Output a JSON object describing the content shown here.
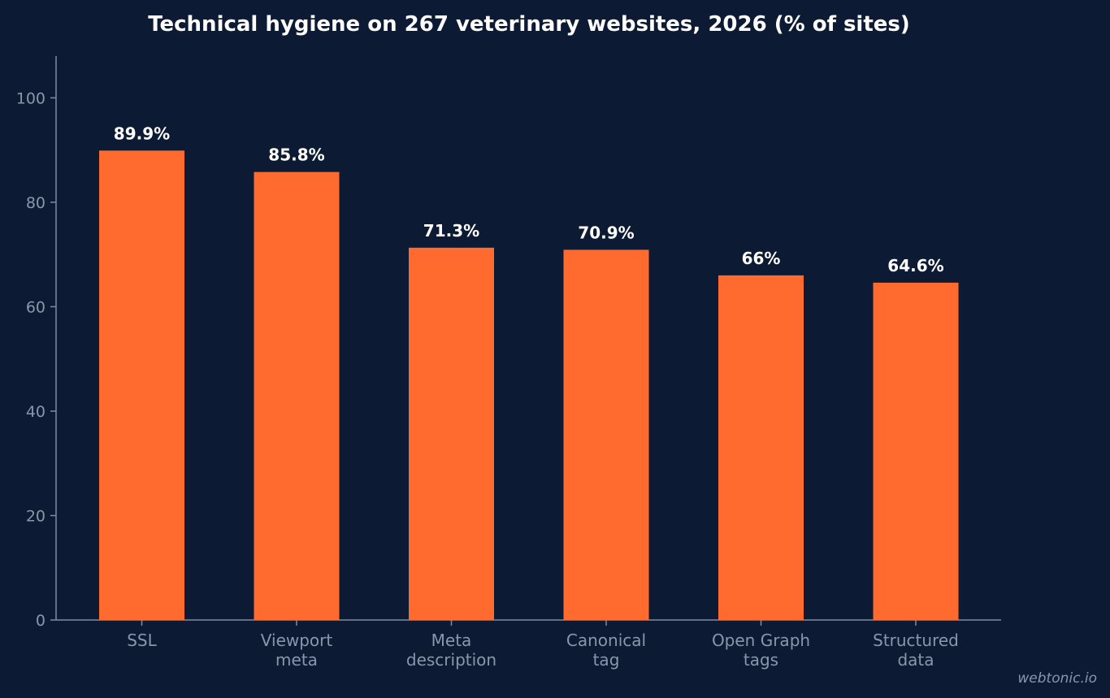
{
  "chart_data": {
    "type": "bar",
    "title": "Technical hygiene on 267 veterinary websites, 2026 (% of sites)",
    "xlabel": "",
    "ylabel": "",
    "ylim": [
      0,
      108
    ],
    "yticks": [
      0,
      20,
      40,
      60,
      80,
      100
    ],
    "grid": false,
    "categories": [
      [
        "SSL"
      ],
      [
        "Viewport",
        "meta"
      ],
      [
        "Meta",
        "description"
      ],
      [
        "Canonical",
        "tag"
      ],
      [
        "Open Graph",
        "tags"
      ],
      [
        "Structured",
        "data"
      ]
    ],
    "values": [
      89.9,
      85.8,
      71.3,
      70.9,
      66,
      64.6
    ],
    "data_labels": [
      "89.9%",
      "85.8%",
      "71.3%",
      "70.9%",
      "66%",
      "64.6%"
    ],
    "bar_color": "#ff6b2f"
  },
  "watermark": "webtonic.io",
  "colors": {
    "background": "#0c1b33",
    "axis": "#7f8ba1",
    "tick_text": "#8a96ab",
    "title_text": "#ffffff",
    "value_text": "#ffffff"
  }
}
